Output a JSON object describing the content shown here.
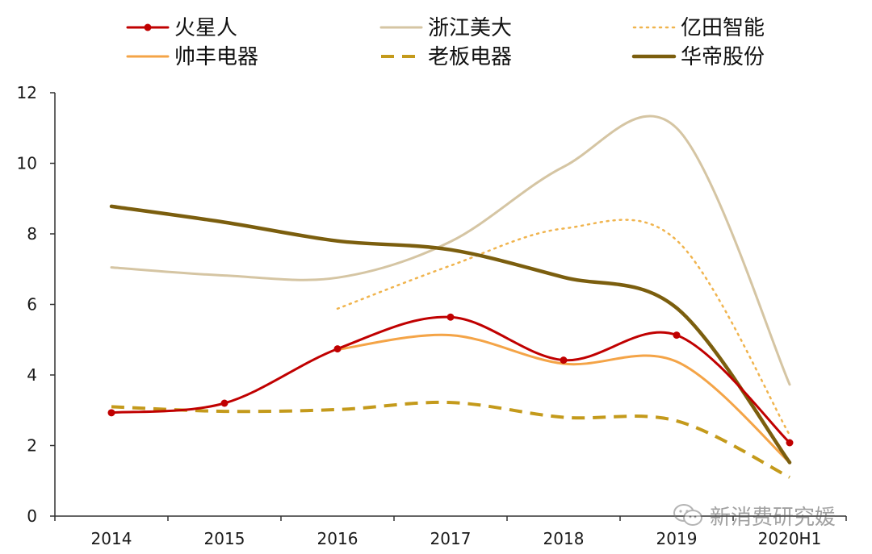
{
  "chart_data": {
    "type": "line",
    "categories": [
      "2014",
      "2015",
      "2016",
      "2017",
      "2018",
      "2019",
      "2020H1"
    ],
    "ylim": [
      0,
      12
    ],
    "yticks": [
      0,
      2,
      4,
      6,
      8,
      10,
      12
    ],
    "ytick_labels": [
      "0",
      "2",
      "4",
      "6",
      "8",
      "10",
      "12"
    ],
    "series": [
      {
        "name": "火星人",
        "color": "#C00000",
        "style": "solid-marker",
        "values": [
          2.93,
          3.2,
          4.74,
          5.64,
          4.42,
          5.13,
          2.08
        ]
      },
      {
        "name": "浙江美大",
        "color": "#D5C5A3",
        "style": "solid",
        "values": [
          7.05,
          6.82,
          6.76,
          7.78,
          9.9,
          11.0,
          3.73
        ]
      },
      {
        "name": "亿田智能",
        "color": "#F0B44E",
        "style": "dotted",
        "values": [
          null,
          null,
          5.88,
          7.1,
          8.15,
          7.82,
          2.3
        ]
      },
      {
        "name": "帅丰电器",
        "color": "#F4A447",
        "style": "solid",
        "values": [
          null,
          null,
          4.72,
          5.13,
          4.32,
          4.38,
          1.52
        ]
      },
      {
        "name": "老板电器",
        "color": "#C49A1B",
        "style": "dashed",
        "values": [
          3.1,
          2.97,
          3.02,
          3.22,
          2.8,
          2.7,
          1.1
        ]
      },
      {
        "name": "华帝股份",
        "color": "#7B5E0E",
        "style": "thick",
        "values": [
          8.78,
          8.33,
          7.8,
          7.55,
          6.77,
          5.9,
          1.52
        ]
      }
    ]
  },
  "watermark": {
    "text": "新消费研究媛"
  }
}
